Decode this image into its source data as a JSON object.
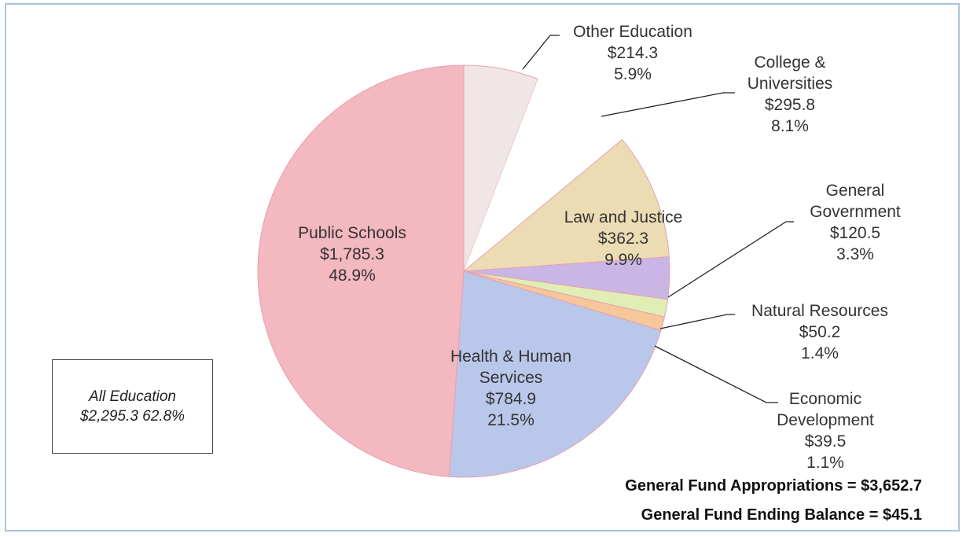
{
  "chart_data": {
    "type": "pie",
    "categories": [
      "Other Education",
      "College & Universities",
      "Law and Justice",
      "General Government",
      "Natural Resources",
      "Economic Development",
      "Health & Human Services",
      "Public Schools"
    ],
    "values": [
      214.3,
      295.8,
      362.3,
      120.5,
      50.2,
      39.5,
      784.9,
      1785.3
    ],
    "value_labels": [
      "$214.3",
      "$295.8",
      "$362.3",
      "$120.5",
      "$50.2",
      "$39.5",
      "$784.9",
      "$1,785.3"
    ],
    "percents": [
      5.9,
      8.1,
      9.9,
      3.3,
      1.4,
      1.1,
      21.5,
      48.9
    ],
    "percent_labels": [
      "5.9%",
      "8.1%",
      "9.9%",
      "3.3%",
      "1.4%",
      "1.1%",
      "21.5%",
      "48.9%"
    ],
    "colors": [
      "#f1e6e6",
      "#ffffff",
      "#ecdcb4",
      "#c9b6e4",
      "#e0edb5",
      "#f6c79a",
      "#b9c7ea",
      "#f3b8c0"
    ],
    "annotation": "All Education $2,295.3 62.8%",
    "footnotes": [
      "General Fund Appropriations = $3,652.7",
      "General Fund Ending Balance = $45.1"
    ]
  }
}
